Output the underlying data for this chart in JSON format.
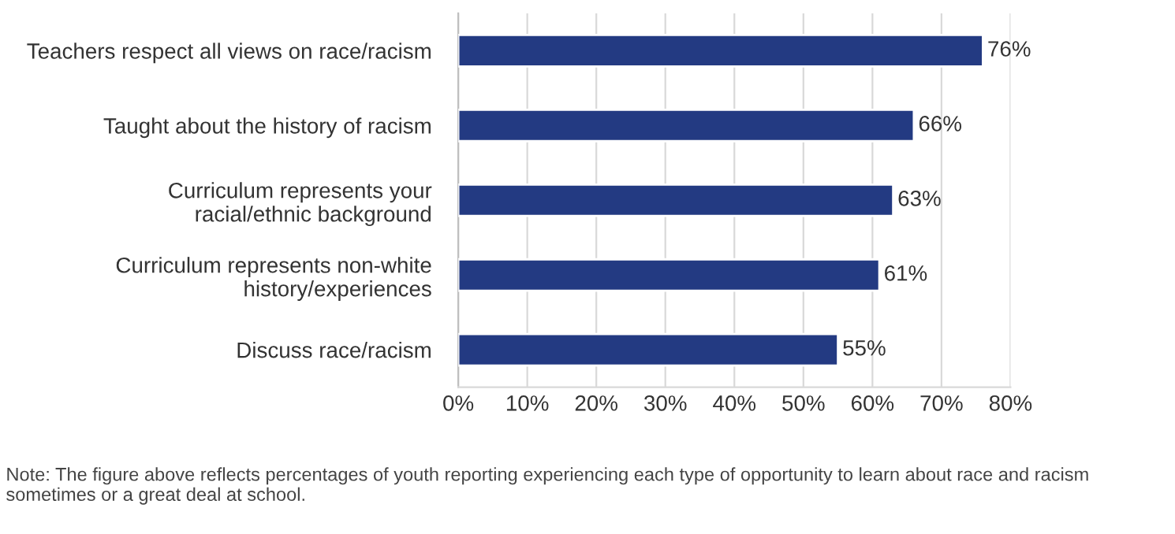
{
  "chart_data": {
    "type": "bar",
    "orientation": "horizontal",
    "categories": [
      "Teachers respect all views on race/racism",
      "Taught about the history of racism",
      "Curriculum represents your\nracial/ethnic background",
      "Curriculum represents non-white\nhistory/experiences",
      "Discuss race/racism"
    ],
    "values": [
      76,
      66,
      63,
      61,
      55
    ],
    "value_labels": [
      "76%",
      "66%",
      "63%",
      "61%",
      "55%"
    ],
    "color": "#233a82",
    "xlim": [
      0,
      80
    ],
    "xticks": [
      {
        "value": 0,
        "label": "0%"
      },
      {
        "value": 10,
        "label": "10%"
      },
      {
        "value": 20,
        "label": "20%"
      },
      {
        "value": 30,
        "label": "30%"
      },
      {
        "value": 40,
        "label": "40%"
      },
      {
        "value": 50,
        "label": "50%"
      },
      {
        "value": 60,
        "label": "60%"
      },
      {
        "value": 70,
        "label": "70%"
      },
      {
        "value": 80,
        "label": "80%"
      }
    ],
    "grid": "x",
    "legend": false,
    "annotations": [
      "Note: The figure above reflects percentages of youth reporting experiencing each type of opportunity to learn about race and racism sometimes or a great deal at school."
    ]
  }
}
